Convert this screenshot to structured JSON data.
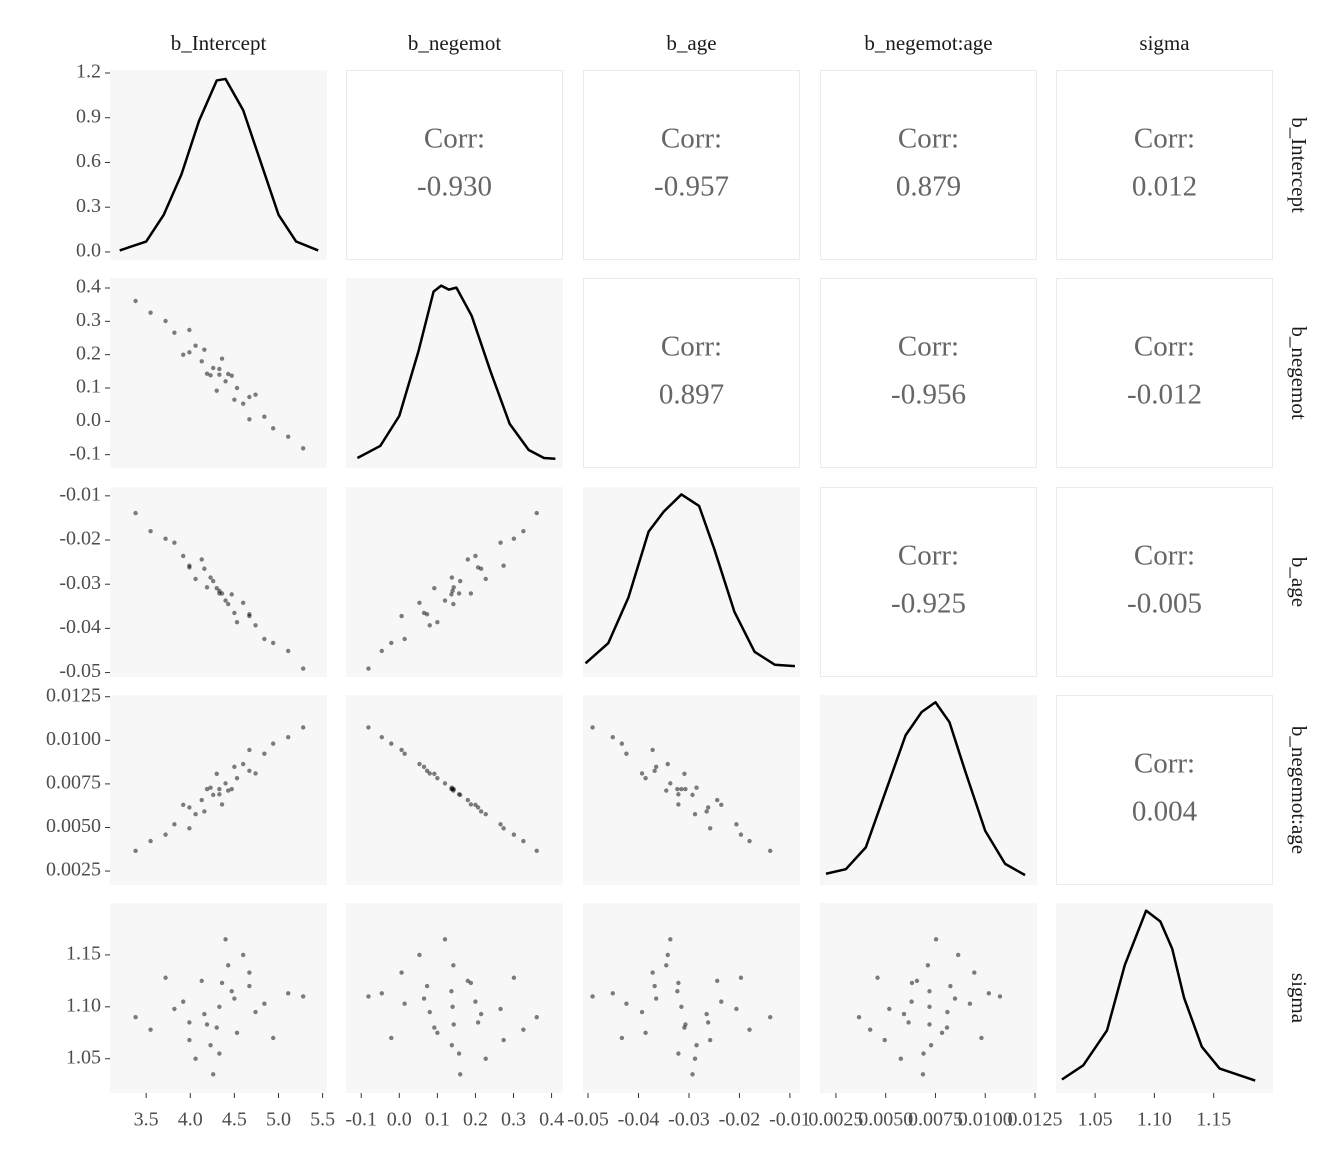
{
  "chart_data": {
    "type": "pairs",
    "variables": [
      "b_Intercept",
      "b_negemot",
      "b_age",
      "b_negemot:age",
      "sigma"
    ],
    "axes": [
      {
        "lim": [
          3.09,
          5.55
        ],
        "ticks": [
          3.5,
          {
            "value": 4,
            "label": "4.0"
          },
          4.5,
          {
            "value": 5,
            "label": "5.0"
          },
          5.5
        ]
      },
      {
        "lim": [
          -0.14,
          0.43
        ],
        "ticks": [
          -0.1,
          {
            "value": 0,
            "label": "0.0"
          },
          0.1,
          0.2,
          0.3,
          0.4
        ]
      },
      {
        "lim": [
          -0.051,
          -0.008
        ],
        "ticks": [
          -0.05,
          -0.04,
          -0.03,
          -0.02,
          -0.01
        ]
      },
      {
        "lim": [
          0.0017,
          0.0126
        ],
        "ticks": [
          0.0025,
          {
            "value": 0.005,
            "label": "0.0050"
          },
          0.0075,
          {
            "value": 0.01,
            "label": "0.0100"
          },
          0.0125
        ]
      },
      {
        "lim": [
          1.017,
          1.2
        ],
        "ticks": [
          1.05,
          {
            "value": 1.1,
            "label": "1.10"
          },
          1.15
        ]
      }
    ],
    "densities": [
      {
        "x": [
          3.2,
          3.5,
          3.7,
          3.9,
          4.1,
          4.3,
          4.4,
          4.6,
          4.8,
          5.0,
          5.2,
          5.45
        ],
        "y": [
          0.01,
          0.07,
          0.25,
          0.52,
          0.88,
          1.15,
          1.16,
          0.95,
          0.6,
          0.25,
          0.07,
          0.01
        ],
        "ylim": [
          -0.054,
          1.22
        ],
        "yticks": [
          {
            "value": 0,
            "label": "0.0"
          },
          0.3,
          0.6,
          0.9,
          1.2
        ]
      },
      {
        "x": [
          -0.11,
          -0.05,
          0.0,
          0.05,
          0.09,
          0.11,
          0.13,
          0.15,
          0.19,
          0.24,
          0.29,
          0.34,
          0.38,
          0.41
        ],
        "y": [
          0.05,
          0.35,
          1.1,
          2.7,
          4.2,
          4.35,
          4.25,
          4.3,
          3.6,
          2.2,
          0.9,
          0.25,
          0.05,
          0.03
        ],
        "ylim": [
          -0.2,
          4.54
        ]
      },
      {
        "x": [
          -0.0505,
          -0.046,
          -0.042,
          -0.038,
          -0.035,
          -0.0315,
          -0.028,
          -0.025,
          -0.021,
          -0.017,
          -0.013,
          -0.009
        ],
        "y": [
          2,
          9,
          25,
          48,
          55,
          61,
          57,
          42,
          20,
          6,
          1.5,
          1
        ],
        "ylim": [
          -2.8,
          63.6
        ]
      },
      {
        "x": [
          0.002,
          0.003,
          0.004,
          0.005,
          0.006,
          0.0068,
          0.0075,
          0.0082,
          0.009,
          0.01,
          0.011,
          0.012
        ],
        "y": [
          5,
          12,
          45,
          130,
          215,
          250,
          265,
          235,
          160,
          70,
          20,
          3
        ],
        "ylim": [
          -12,
          276
        ]
      },
      {
        "x": [
          1.022,
          1.04,
          1.06,
          1.075,
          1.093,
          1.105,
          1.115,
          1.125,
          1.14,
          1.155,
          1.185
        ],
        "y": [
          0.5,
          1.8,
          5,
          11,
          16,
          15,
          12.5,
          8,
          3.5,
          1.5,
          0.4
        ],
        "ylim": [
          -0.74,
          16.7
        ]
      }
    ],
    "corr_label": "Corr:",
    "correlations": [
      [
        -0.93,
        -0.957,
        0.879,
        0.012
      ],
      [
        0.897,
        -0.956,
        -0.012
      ],
      [
        -0.925,
        -0.005
      ],
      [
        0.004
      ]
    ],
    "correlation_labels": [
      [
        "-0.930",
        "-0.957",
        "0.879",
        "0.012"
      ],
      [
        "0.897",
        "-0.956",
        "-0.012"
      ],
      [
        "-0.925",
        "-0.005"
      ],
      [
        "0.004"
      ]
    ],
    "draws": [
      [
        4.33,
        4.67,
        3.99,
        4.94,
        3.72,
        4.5,
        4.16,
        5.11,
        3.55,
        4.43,
        4.23,
        4.74,
        3.92,
        4.6,
        4.06,
        4.84,
        3.82,
        4.36,
        4.3,
        5.28,
        3.38,
        4.53,
        4.13,
        4.67,
        3.99,
        4.4,
        4.26,
        4.47,
        4.19,
        4.33
      ],
      [
        0.14,
        0.073,
        0.207,
        -0.021,
        0.301,
        0.065,
        0.215,
        -0.046,
        0.326,
        0.142,
        0.138,
        0.08,
        0.2,
        0.053,
        0.227,
        0.014,
        0.266,
        0.188,
        0.092,
        -0.081,
        0.361,
        0.1,
        0.18,
        0.006,
        0.274,
        0.12,
        0.16,
        0.137,
        0.143,
        0.157
      ],
      [
        -0.0315,
        -0.0368,
        -0.0262,
        -0.0433,
        -0.0197,
        -0.0365,
        -0.0265,
        -0.0451,
        -0.018,
        -0.0345,
        -0.0285,
        -0.0393,
        -0.0236,
        -0.0342,
        -0.0288,
        -0.0424,
        -0.0206,
        -0.0321,
        -0.0309,
        -0.0491,
        -0.0139,
        -0.0386,
        -0.0244,
        -0.0372,
        -0.0258,
        -0.0337,
        -0.0293,
        -0.0323,
        -0.0307,
        -0.0321
      ],
      [
        0.0072,
        0.00825,
        0.00615,
        0.00981,
        0.00459,
        0.00848,
        0.00592,
        0.01018,
        0.00422,
        0.00712,
        0.00728,
        0.0081,
        0.0063,
        0.00864,
        0.00576,
        0.00923,
        0.00518,
        0.00632,
        0.00808,
        0.01074,
        0.00366,
        0.00783,
        0.00657,
        0.00945,
        0.00495,
        0.00753,
        0.00687,
        0.0072,
        0.0072,
        0.0069
      ],
      [
        1.1,
        1.12,
        1.085,
        1.07,
        1.128,
        1.108,
        1.093,
        1.113,
        1.078,
        1.14,
        1.063,
        1.095,
        1.105,
        1.15,
        1.05,
        1.103,
        1.098,
        1.123,
        1.08,
        1.11,
        1.09,
        1.075,
        1.125,
        1.133,
        1.068,
        1.165,
        1.035,
        1.115,
        1.083,
        1.055
      ]
    ]
  }
}
